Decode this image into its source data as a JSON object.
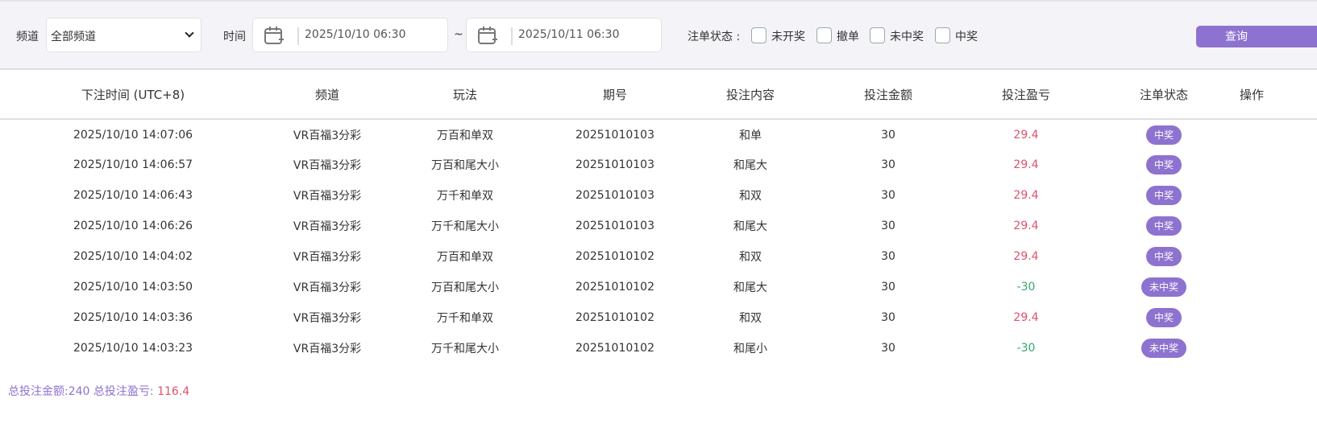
{
  "filter": {
    "channel_label": "频道",
    "channel_value": "全部频道",
    "time_label": "时间",
    "start": "2025/10/10 06:30",
    "range_sep": "~",
    "end": "2025/10/11 06:30",
    "status_label": "注单状态 :",
    "status_options": [
      "未开奖",
      "撤单",
      "未中奖",
      "中奖"
    ],
    "query_button": "查询"
  },
  "table": {
    "headers": [
      "下注时间 (UTC+8)",
      "频道",
      "玩法",
      "期号",
      "投注内容",
      "投注金额",
      "投注盈亏",
      "注单状态",
      "操作"
    ],
    "rows": [
      {
        "time": "2025/10/10 14:07:06",
        "channel": "VR百福3分彩",
        "play": "万百和单双",
        "issue": "20251010103",
        "content": "和单",
        "amount": "30",
        "profit": "29.4",
        "status": "中奖"
      },
      {
        "time": "2025/10/10 14:06:57",
        "channel": "VR百福3分彩",
        "play": "万百和尾大小",
        "issue": "20251010103",
        "content": "和尾大",
        "amount": "30",
        "profit": "29.4",
        "status": "中奖"
      },
      {
        "time": "2025/10/10 14:06:43",
        "channel": "VR百福3分彩",
        "play": "万千和单双",
        "issue": "20251010103",
        "content": "和双",
        "amount": "30",
        "profit": "29.4",
        "status": "中奖"
      },
      {
        "time": "2025/10/10 14:06:26",
        "channel": "VR百福3分彩",
        "play": "万千和尾大小",
        "issue": "20251010103",
        "content": "和尾大",
        "amount": "30",
        "profit": "29.4",
        "status": "中奖"
      },
      {
        "time": "2025/10/10 14:04:02",
        "channel": "VR百福3分彩",
        "play": "万百和单双",
        "issue": "20251010102",
        "content": "和双",
        "amount": "30",
        "profit": "29.4",
        "status": "中奖"
      },
      {
        "time": "2025/10/10 14:03:50",
        "channel": "VR百福3分彩",
        "play": "万百和尾大小",
        "issue": "20251010102",
        "content": "和尾大",
        "amount": "30",
        "profit": "-30",
        "status": "未中奖"
      },
      {
        "time": "2025/10/10 14:03:36",
        "channel": "VR百福3分彩",
        "play": "万千和单双",
        "issue": "20251010102",
        "content": "和双",
        "amount": "30",
        "profit": "29.4",
        "status": "中奖"
      },
      {
        "time": "2025/10/10 14:03:23",
        "channel": "VR百福3分彩",
        "play": "万千和尾大小",
        "issue": "20251010102",
        "content": "和尾小",
        "amount": "30",
        "profit": "-30",
        "status": "未中奖"
      }
    ]
  },
  "summary": {
    "total_amount_label": "总投注金额:",
    "total_amount": "240",
    "total_profit_label": "总投注盈亏:",
    "total_profit": "116.4"
  },
  "colors": {
    "accent": "#8e72cf",
    "profit_positive": "#e0506e",
    "profit_negative": "#3aa76d"
  }
}
